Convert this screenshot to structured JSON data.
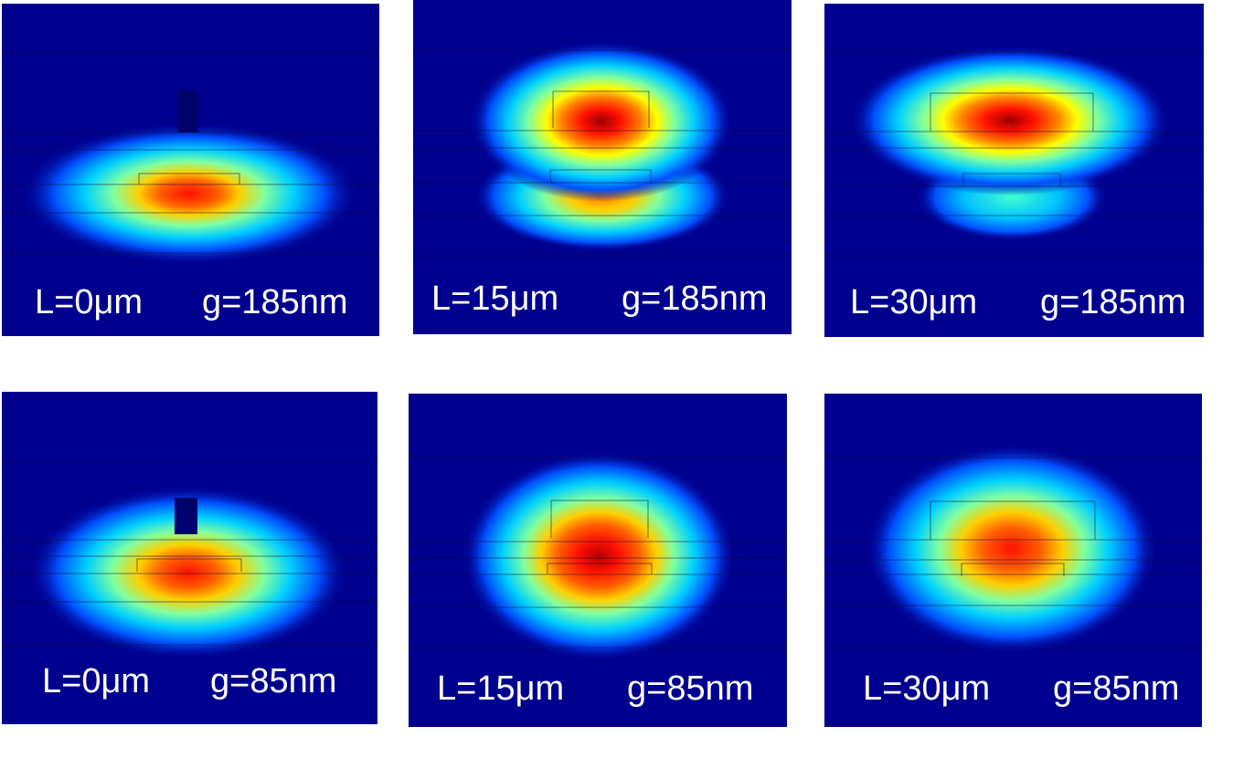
{
  "colors": {
    "background": "#00008f",
    "colormap": [
      "#00007f",
      "#0000d0",
      "#0060ff",
      "#00d0ff",
      "#7fffa0",
      "#ffff00",
      "#ff8000",
      "#ff1000",
      "#9a0000"
    ]
  },
  "panels": [
    {
      "length": "L=0μm",
      "gap": "g=185nm"
    },
    {
      "length": "L=15μm",
      "gap": "g=185nm"
    },
    {
      "length": "L=30μm",
      "gap": "g=185nm"
    },
    {
      "length": "L=0μm",
      "gap": "g=85nm"
    },
    {
      "length": "L=15μm",
      "gap": "g=85nm"
    },
    {
      "length": "L=30μm",
      "gap": "g=85nm"
    }
  ]
}
